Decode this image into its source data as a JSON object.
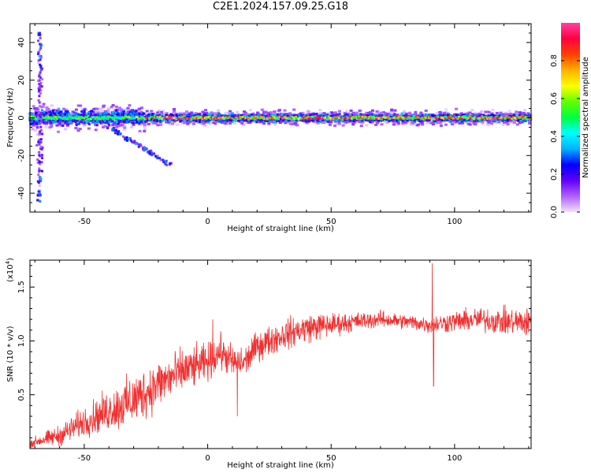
{
  "title": "C2E1.2024.157.09.25.G18",
  "chart_data": [
    {
      "type": "heatmap",
      "xlabel": "Height of straight line (km)",
      "ylabel": "Frequency (Hz)",
      "xlim": [
        -72,
        131
      ],
      "ylim": [
        -50,
        50
      ],
      "xticks": [
        -50,
        0,
        50,
        100
      ],
      "yticks": [
        -40,
        -20,
        0,
        20,
        40
      ],
      "colorbar": {
        "label": "Normalized spectral amplitude",
        "ticks": [
          "0.0",
          "0.2",
          "0.4",
          "0.6",
          "0.8"
        ],
        "range": [
          0,
          1
        ],
        "colormap": [
          "#f4e0ff",
          "#b060ff",
          "#6000ff",
          "#0000ff",
          "#00b0ff",
          "#00ffff",
          "#00ff40",
          "#60ff00",
          "#ffff00",
          "#ffb000",
          "#ff4000",
          "#ff0040",
          "#ff40a0"
        ]
      },
      "features": {
        "main_band_center_hz": 0,
        "main_band_halfwidth_hz": 3,
        "noisy_region_end_km": -25,
        "spike_x_km": -68,
        "spike_freq_range_hz": [
          -45,
          45
        ],
        "diagonal_tail": {
          "from": [
            -40,
            -5
          ],
          "to": [
            -15,
            -25
          ]
        }
      }
    },
    {
      "type": "line",
      "xlabel": "Height of straight line (km)",
      "ylabel": "SNR (10 * v/v)",
      "y_multiplier": "(x10",
      "y_multiplier_exp": "4",
      "y_multiplier_close": ")",
      "xlim": [
        -72,
        131
      ],
      "ylim": [
        0,
        1.75
      ],
      "xticks": [
        -50,
        0,
        50,
        100
      ],
      "yticks": [
        "0.5",
        "1.0",
        "1.5"
      ],
      "color": "#f03030",
      "trend": [
        [
          -72,
          0.05
        ],
        [
          -60,
          0.12
        ],
        [
          -50,
          0.25
        ],
        [
          -40,
          0.35
        ],
        [
          -30,
          0.45
        ],
        [
          -20,
          0.6
        ],
        [
          -10,
          0.72
        ],
        [
          0,
          0.8
        ],
        [
          5,
          0.9
        ],
        [
          10,
          0.8
        ],
        [
          15,
          0.8
        ],
        [
          20,
          0.95
        ],
        [
          30,
          1.05
        ],
        [
          40,
          1.12
        ],
        [
          50,
          1.15
        ],
        [
          60,
          1.18
        ],
        [
          70,
          1.2
        ],
        [
          80,
          1.18
        ],
        [
          90,
          1.15
        ],
        [
          100,
          1.18
        ],
        [
          110,
          1.2
        ],
        [
          120,
          1.18
        ],
        [
          131,
          1.17
        ]
      ],
      "amplitude": [
        [
          -72,
          0.06
        ],
        [
          -50,
          0.2
        ],
        [
          -30,
          0.35
        ],
        [
          -10,
          0.3
        ],
        [
          0,
          0.25
        ],
        [
          20,
          0.2
        ],
        [
          40,
          0.2
        ],
        [
          60,
          0.12
        ],
        [
          80,
          0.1
        ],
        [
          100,
          0.14
        ],
        [
          131,
          0.2
        ]
      ],
      "spikes": [
        {
          "x": 91,
          "y": 1.72
        },
        {
          "x": 91.5,
          "y": 0.58
        },
        {
          "x": 12,
          "y": 0.3
        },
        {
          "x": 2,
          "y": 1.2
        }
      ]
    }
  ]
}
